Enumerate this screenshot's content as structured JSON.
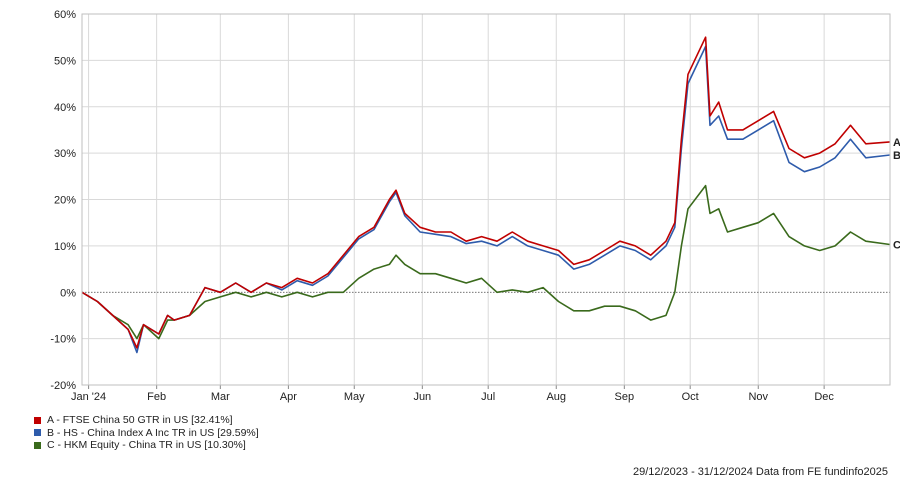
{
  "chart_data": {
    "type": "line",
    "title": "",
    "xlabel": "",
    "ylabel": "",
    "ylim": [
      -20,
      60
    ],
    "yticks": [
      "60%",
      "50%",
      "40%",
      "30%",
      "20%",
      "10%",
      "0%",
      "-10%",
      "-20%"
    ],
    "xlim": [
      "2023-12-29",
      "2024-12-31"
    ],
    "xticks": [
      {
        "date": "2024-01-01",
        "label": "Jan '24"
      },
      {
        "date": "2024-02-01",
        "label": "Feb"
      },
      {
        "date": "2024-03-01",
        "label": "Mar"
      },
      {
        "date": "2024-04-01",
        "label": "Apr"
      },
      {
        "date": "2024-05-01",
        "label": "May"
      },
      {
        "date": "2024-06-01",
        "label": "Jun"
      },
      {
        "date": "2024-07-01",
        "label": "Jul"
      },
      {
        "date": "2024-08-01",
        "label": "Aug"
      },
      {
        "date": "2024-09-01",
        "label": "Sep"
      },
      {
        "date": "2024-10-01",
        "label": "Oct"
      },
      {
        "date": "2024-11-01",
        "label": "Nov"
      },
      {
        "date": "2024-12-01",
        "label": "Dec"
      }
    ],
    "grid": true,
    "legend_position": "bottom-left",
    "series": [
      {
        "name": "A - FTSE China 50 GTR in US [32.41%]",
        "end_label": "A",
        "color": "#c00000",
        "points": [
          [
            "2023-12-29",
            0
          ],
          [
            "2024-01-05",
            -2
          ],
          [
            "2024-01-12",
            -5
          ],
          [
            "2024-01-19",
            -8
          ],
          [
            "2024-01-23",
            -12
          ],
          [
            "2024-01-26",
            -7
          ],
          [
            "2024-02-02",
            -9
          ],
          [
            "2024-02-06",
            -5
          ],
          [
            "2024-02-09",
            -6
          ],
          [
            "2024-02-16",
            -5
          ],
          [
            "2024-02-23",
            1
          ],
          [
            "2024-03-01",
            0
          ],
          [
            "2024-03-08",
            2
          ],
          [
            "2024-03-15",
            0
          ],
          [
            "2024-03-22",
            2
          ],
          [
            "2024-03-29",
            1
          ],
          [
            "2024-04-05",
            3
          ],
          [
            "2024-04-12",
            2
          ],
          [
            "2024-04-19",
            4
          ],
          [
            "2024-04-26",
            8
          ],
          [
            "2024-05-03",
            12
          ],
          [
            "2024-05-10",
            14
          ],
          [
            "2024-05-17",
            20
          ],
          [
            "2024-05-20",
            22
          ],
          [
            "2024-05-24",
            17
          ],
          [
            "2024-05-31",
            14
          ],
          [
            "2024-06-07",
            13
          ],
          [
            "2024-06-14",
            13
          ],
          [
            "2024-06-21",
            11
          ],
          [
            "2024-06-28",
            12
          ],
          [
            "2024-07-05",
            11
          ],
          [
            "2024-07-12",
            13
          ],
          [
            "2024-07-19",
            11
          ],
          [
            "2024-07-26",
            10
          ],
          [
            "2024-08-02",
            9
          ],
          [
            "2024-08-09",
            6
          ],
          [
            "2024-08-16",
            7
          ],
          [
            "2024-08-23",
            9
          ],
          [
            "2024-08-30",
            11
          ],
          [
            "2024-09-06",
            10
          ],
          [
            "2024-09-13",
            8
          ],
          [
            "2024-09-20",
            11
          ],
          [
            "2024-09-24",
            15
          ],
          [
            "2024-09-27",
            33
          ],
          [
            "2024-09-30",
            47
          ],
          [
            "2024-10-08",
            55
          ],
          [
            "2024-10-10",
            38
          ],
          [
            "2024-10-14",
            41
          ],
          [
            "2024-10-18",
            35
          ],
          [
            "2024-10-25",
            35
          ],
          [
            "2024-11-01",
            37
          ],
          [
            "2024-11-08",
            39
          ],
          [
            "2024-11-15",
            31
          ],
          [
            "2024-11-22",
            29
          ],
          [
            "2024-11-29",
            30
          ],
          [
            "2024-12-06",
            32
          ],
          [
            "2024-12-13",
            36
          ],
          [
            "2024-12-20",
            32
          ],
          [
            "2024-12-31",
            32.41
          ]
        ]
      },
      {
        "name": "B - HS - China Index A Inc TR in US [29.59%]",
        "end_label": "B",
        "color": "#2e5bab",
        "points": [
          [
            "2023-12-29",
            0
          ],
          [
            "2024-01-05",
            -2
          ],
          [
            "2024-01-12",
            -5
          ],
          [
            "2024-01-19",
            -8
          ],
          [
            "2024-01-23",
            -13
          ],
          [
            "2024-01-26",
            -7
          ],
          [
            "2024-02-02",
            -9
          ],
          [
            "2024-02-06",
            -5
          ],
          [
            "2024-02-09",
            -6
          ],
          [
            "2024-02-16",
            -5
          ],
          [
            "2024-02-23",
            1
          ],
          [
            "2024-03-01",
            0
          ],
          [
            "2024-03-08",
            2
          ],
          [
            "2024-03-15",
            0
          ],
          [
            "2024-03-22",
            2
          ],
          [
            "2024-03-29",
            0.5
          ],
          [
            "2024-04-05",
            2.5
          ],
          [
            "2024-04-12",
            1.5
          ],
          [
            "2024-04-19",
            3.5
          ],
          [
            "2024-04-26",
            7.5
          ],
          [
            "2024-05-03",
            11.5
          ],
          [
            "2024-05-10",
            13.5
          ],
          [
            "2024-05-17",
            19.5
          ],
          [
            "2024-05-20",
            21.5
          ],
          [
            "2024-05-24",
            16.5
          ],
          [
            "2024-05-31",
            13
          ],
          [
            "2024-06-07",
            12.5
          ],
          [
            "2024-06-14",
            12
          ],
          [
            "2024-06-21",
            10.5
          ],
          [
            "2024-06-28",
            11
          ],
          [
            "2024-07-05",
            10
          ],
          [
            "2024-07-12",
            12
          ],
          [
            "2024-07-19",
            10
          ],
          [
            "2024-07-26",
            9
          ],
          [
            "2024-08-02",
            8
          ],
          [
            "2024-08-09",
            5
          ],
          [
            "2024-08-16",
            6
          ],
          [
            "2024-08-23",
            8
          ],
          [
            "2024-08-30",
            10
          ],
          [
            "2024-09-06",
            9
          ],
          [
            "2024-09-13",
            7
          ],
          [
            "2024-09-20",
            10
          ],
          [
            "2024-09-24",
            14
          ],
          [
            "2024-09-27",
            31
          ],
          [
            "2024-09-30",
            45
          ],
          [
            "2024-10-08",
            53
          ],
          [
            "2024-10-10",
            36
          ],
          [
            "2024-10-14",
            38
          ],
          [
            "2024-10-18",
            33
          ],
          [
            "2024-10-25",
            33
          ],
          [
            "2024-11-01",
            35
          ],
          [
            "2024-11-08",
            37
          ],
          [
            "2024-11-15",
            28
          ],
          [
            "2024-11-22",
            26
          ],
          [
            "2024-11-29",
            27
          ],
          [
            "2024-12-06",
            29
          ],
          [
            "2024-12-13",
            33
          ],
          [
            "2024-12-20",
            29
          ],
          [
            "2024-12-31",
            29.59
          ]
        ]
      },
      {
        "name": "C - HKM Equity - China TR in US [10.30%]",
        "end_label": "C",
        "color": "#3a6a1c",
        "points": [
          [
            "2023-12-29",
            0
          ],
          [
            "2024-01-05",
            -2
          ],
          [
            "2024-01-12",
            -5
          ],
          [
            "2024-01-19",
            -7
          ],
          [
            "2024-01-23",
            -10
          ],
          [
            "2024-01-26",
            -7
          ],
          [
            "2024-02-02",
            -10
          ],
          [
            "2024-02-06",
            -6
          ],
          [
            "2024-02-09",
            -6
          ],
          [
            "2024-02-16",
            -5
          ],
          [
            "2024-02-23",
            -2
          ],
          [
            "2024-03-01",
            -1
          ],
          [
            "2024-03-08",
            0
          ],
          [
            "2024-03-15",
            -1
          ],
          [
            "2024-03-22",
            0
          ],
          [
            "2024-03-29",
            -1
          ],
          [
            "2024-04-05",
            0
          ],
          [
            "2024-04-12",
            -1
          ],
          [
            "2024-04-19",
            0
          ],
          [
            "2024-04-26",
            0
          ],
          [
            "2024-05-03",
            3
          ],
          [
            "2024-05-10",
            5
          ],
          [
            "2024-05-17",
            6
          ],
          [
            "2024-05-20",
            8
          ],
          [
            "2024-05-24",
            6
          ],
          [
            "2024-05-31",
            4
          ],
          [
            "2024-06-07",
            4
          ],
          [
            "2024-06-14",
            3
          ],
          [
            "2024-06-21",
            2
          ],
          [
            "2024-06-28",
            3
          ],
          [
            "2024-07-05",
            0
          ],
          [
            "2024-07-12",
            0.5
          ],
          [
            "2024-07-19",
            0
          ],
          [
            "2024-07-26",
            1
          ],
          [
            "2024-08-02",
            -2
          ],
          [
            "2024-08-09",
            -4
          ],
          [
            "2024-08-16",
            -4
          ],
          [
            "2024-08-23",
            -3
          ],
          [
            "2024-08-30",
            -3
          ],
          [
            "2024-09-06",
            -4
          ],
          [
            "2024-09-13",
            -6
          ],
          [
            "2024-09-20",
            -5
          ],
          [
            "2024-09-24",
            0
          ],
          [
            "2024-09-27",
            10
          ],
          [
            "2024-09-30",
            18
          ],
          [
            "2024-10-08",
            23
          ],
          [
            "2024-10-10",
            17
          ],
          [
            "2024-10-14",
            18
          ],
          [
            "2024-10-18",
            13
          ],
          [
            "2024-10-25",
            14
          ],
          [
            "2024-11-01",
            15
          ],
          [
            "2024-11-08",
            17
          ],
          [
            "2024-11-15",
            12
          ],
          [
            "2024-11-22",
            10
          ],
          [
            "2024-11-29",
            9
          ],
          [
            "2024-12-06",
            10
          ],
          [
            "2024-12-13",
            13
          ],
          [
            "2024-12-20",
            11
          ],
          [
            "2024-12-31",
            10.3
          ]
        ]
      }
    ]
  },
  "footer": {
    "date_range": "29/12/2023 - 31/12/2024",
    "source": "Data from FE fundinfo2025"
  }
}
